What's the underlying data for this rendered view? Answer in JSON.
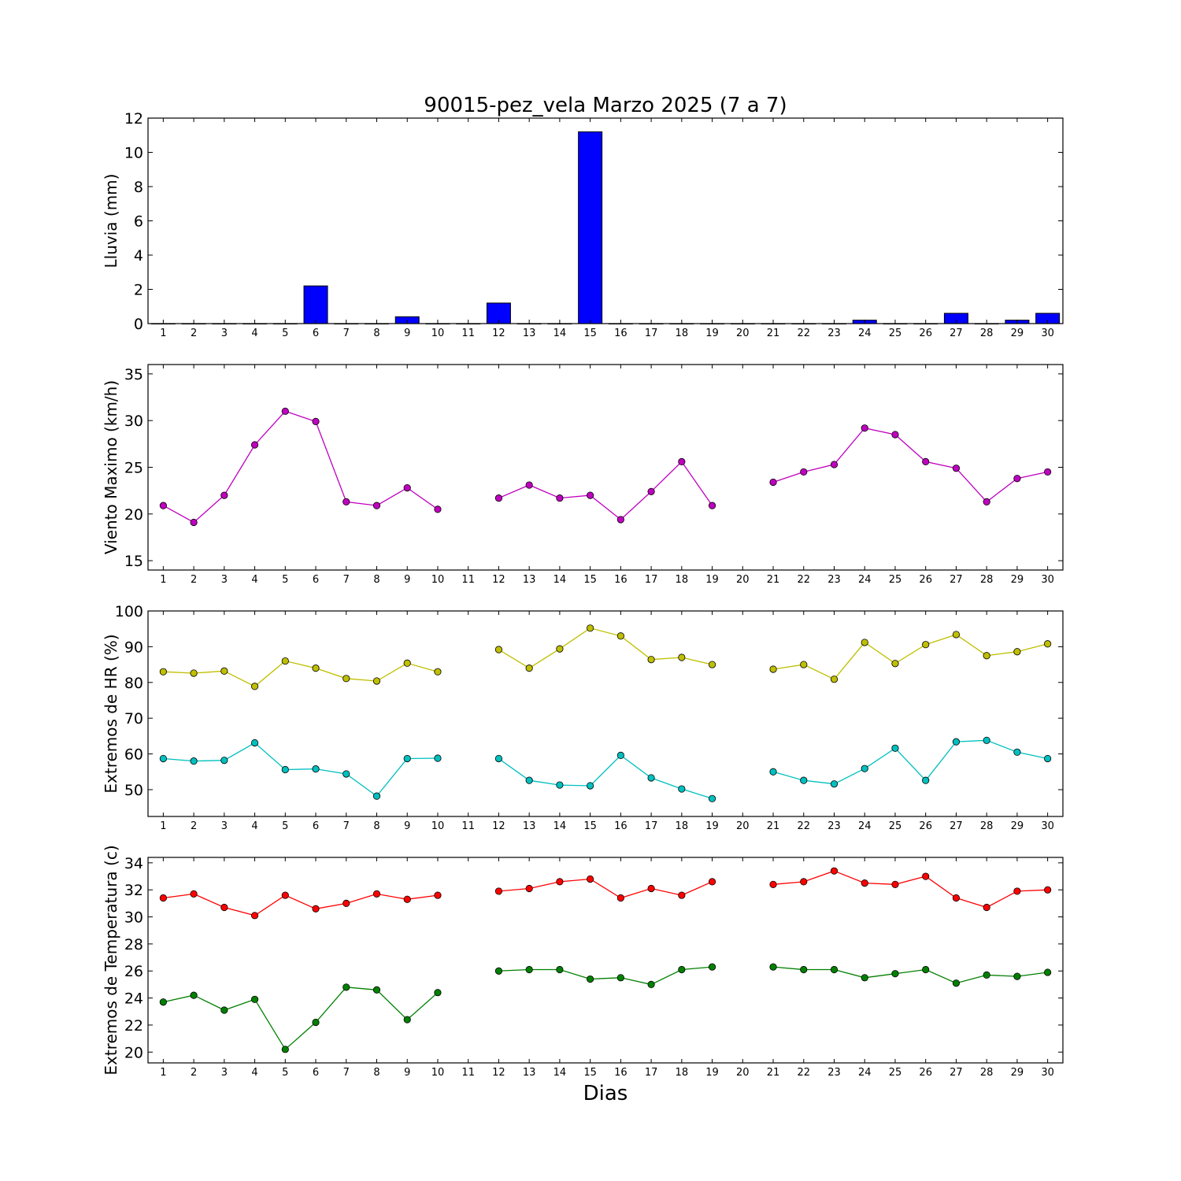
{
  "figure": {
    "title": "90015-pez_vela Marzo 2025  (7 a 7)",
    "xlabel": "Dias"
  },
  "chart_data": [
    {
      "type": "bar",
      "ylabel": "Lluvia (mm)",
      "ylim": [
        0,
        12
      ],
      "yticks": [
        0,
        2,
        4,
        6,
        8,
        10,
        12
      ],
      "xticks": [
        1,
        2,
        3,
        4,
        5,
        6,
        7,
        8,
        9,
        10,
        11,
        12,
        13,
        14,
        15,
        16,
        17,
        18,
        19,
        20,
        21,
        22,
        23,
        24,
        25,
        26,
        27,
        28,
        29,
        30
      ],
      "bar_color": "#0000ff",
      "x": [
        1,
        2,
        3,
        4,
        5,
        6,
        7,
        8,
        9,
        10,
        11,
        12,
        13,
        14,
        15,
        16,
        17,
        18,
        19,
        20,
        21,
        22,
        23,
        24,
        25,
        26,
        27,
        28,
        29,
        30
      ],
      "values": [
        0,
        0,
        0,
        0,
        0,
        2.2,
        0,
        0,
        0.4,
        0,
        0,
        1.2,
        0,
        0,
        11.2,
        0,
        0,
        0,
        0,
        0,
        0,
        0,
        0,
        0.2,
        0,
        0,
        0.6,
        0,
        0.2,
        0.6
      ]
    },
    {
      "type": "line",
      "ylabel": "Viento Maximo (km/h)",
      "ylim": [
        14,
        36
      ],
      "yticks": [
        15,
        20,
        25,
        30,
        35
      ],
      "xticks": [
        1,
        2,
        3,
        4,
        5,
        6,
        7,
        8,
        9,
        10,
        11,
        12,
        13,
        14,
        15,
        16,
        17,
        18,
        19,
        20,
        21,
        22,
        23,
        24,
        25,
        26,
        27,
        28,
        29,
        30
      ],
      "x": [
        1,
        2,
        3,
        4,
        5,
        6,
        7,
        8,
        9,
        10,
        11,
        12,
        13,
        14,
        15,
        16,
        17,
        18,
        19,
        20,
        21,
        22,
        23,
        24,
        25,
        26,
        27,
        28,
        29,
        30
      ],
      "series": [
        {
          "color": "#bf00bf",
          "values": [
            20.9,
            19.1,
            22.0,
            27.4,
            31.0,
            29.9,
            21.3,
            20.9,
            22.8,
            20.5,
            null,
            21.7,
            23.1,
            21.7,
            22.0,
            19.4,
            22.4,
            25.6,
            20.9,
            null,
            23.4,
            24.5,
            25.3,
            29.2,
            28.5,
            25.6,
            24.9,
            21.3,
            23.8,
            24.5
          ]
        }
      ]
    },
    {
      "type": "line",
      "ylabel": "Extremos de HR (%)",
      "ylim": [
        42.5,
        100
      ],
      "yticks": [
        50,
        60,
        70,
        80,
        90,
        100
      ],
      "xticks": [
        1,
        2,
        3,
        4,
        5,
        6,
        7,
        8,
        9,
        10,
        11,
        12,
        13,
        14,
        15,
        16,
        17,
        18,
        19,
        20,
        21,
        22,
        23,
        24,
        25,
        26,
        27,
        28,
        29,
        30
      ],
      "x": [
        1,
        2,
        3,
        4,
        5,
        6,
        7,
        8,
        9,
        10,
        11,
        12,
        13,
        14,
        15,
        16,
        17,
        18,
        19,
        20,
        21,
        22,
        23,
        24,
        25,
        26,
        27,
        28,
        29,
        30
      ],
      "series": [
        {
          "color": "#bfbf00",
          "values": [
            83,
            82.6,
            83.2,
            78.9,
            86,
            84,
            81.1,
            80.4,
            85.4,
            83,
            null,
            89.2,
            84,
            89.4,
            95.2,
            93,
            86.4,
            87,
            85,
            null,
            83.7,
            85,
            80.9,
            91.2,
            85.3,
            90.6,
            93.4,
            87.5,
            88.6,
            90.8
          ]
        },
        {
          "color": "#00bfbf",
          "values": [
            58.7,
            58,
            58.2,
            63.1,
            55.6,
            55.8,
            54.4,
            48.2,
            58.7,
            58.8,
            null,
            58.7,
            52.6,
            51.3,
            51.1,
            59.6,
            53.3,
            50.2,
            47.5,
            null,
            55,
            52.6,
            51.6,
            55.9,
            61.6,
            52.6,
            63.4,
            63.8,
            60.5,
            58.7
          ]
        }
      ]
    },
    {
      "type": "line",
      "ylabel": "Extremos de Temperatura (c)",
      "ylim": [
        19.2,
        34.4
      ],
      "yticks": [
        20,
        22,
        24,
        26,
        28,
        30,
        32,
        34
      ],
      "xticks": [
        1,
        2,
        3,
        4,
        5,
        6,
        7,
        8,
        9,
        10,
        11,
        12,
        13,
        14,
        15,
        16,
        17,
        18,
        19,
        20,
        21,
        22,
        23,
        24,
        25,
        26,
        27,
        28,
        29,
        30
      ],
      "x": [
        1,
        2,
        3,
        4,
        5,
        6,
        7,
        8,
        9,
        10,
        11,
        12,
        13,
        14,
        15,
        16,
        17,
        18,
        19,
        20,
        21,
        22,
        23,
        24,
        25,
        26,
        27,
        28,
        29,
        30
      ],
      "series": [
        {
          "color": "#ff0000",
          "values": [
            31.4,
            31.7,
            30.7,
            30.1,
            31.6,
            30.6,
            31,
            31.7,
            31.3,
            31.6,
            null,
            31.9,
            32.1,
            32.6,
            32.8,
            31.4,
            32.1,
            31.6,
            32.6,
            null,
            32.4,
            32.6,
            33.4,
            32.5,
            32.4,
            33,
            31.4,
            30.7,
            31.9,
            32
          ]
        },
        {
          "color": "#008000",
          "values": [
            23.7,
            24.2,
            23.1,
            23.9,
            20.2,
            22.2,
            24.8,
            24.6,
            22.4,
            24.4,
            null,
            26,
            26.1,
            26.1,
            25.4,
            25.5,
            25,
            26.1,
            26.3,
            null,
            26.3,
            26.1,
            26.1,
            25.5,
            25.8,
            26.1,
            25.1,
            25.7,
            25.6,
            25.9
          ]
        }
      ]
    }
  ]
}
